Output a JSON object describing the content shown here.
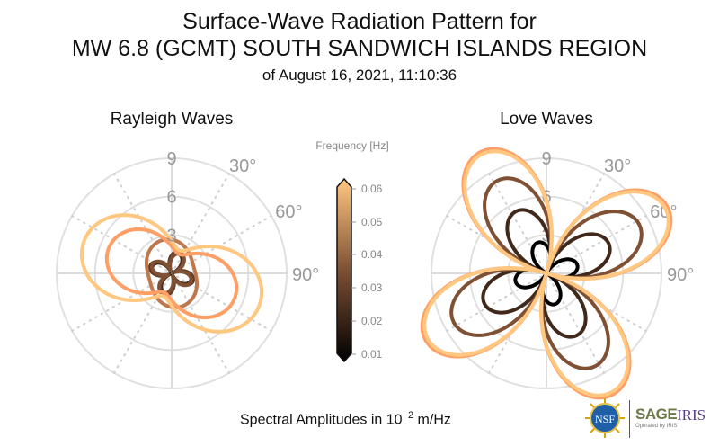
{
  "header": {
    "title_line1": "Surface-Wave Radiation Pattern for",
    "title_line2": "MW 6.8 (GCMT) SOUTH SANDWICH ISLANDS REGION",
    "title_line3": "of August 16, 2021, 11:10:36"
  },
  "footer": {
    "units_prefix": "Spectral Amplitudes in 10",
    "units_exponent": "−2",
    "units_suffix": " m/Hz"
  },
  "logos": {
    "nsf": "NSF",
    "sage": "SAGE",
    "iris": "IRIS",
    "operated_by": "Operated by IRIS"
  },
  "colors": {
    "cmap_low": "#000000",
    "cmap_mid": "#9c6340",
    "cmap_high": "#ffc77f",
    "grid": "#e0e0e0",
    "tick_text": "#999999"
  },
  "chart_data": [
    {
      "type": "polar-line",
      "title": "Rayleigh Waves",
      "radial_ticks": [
        "3",
        "6",
        "9"
      ],
      "radial_tick_values": [
        3,
        6,
        9
      ],
      "rmax": 9,
      "angular_ticks": [
        "30°",
        "60°",
        "90°"
      ],
      "angular_tick_values": [
        30,
        60,
        90
      ],
      "angle_zero": "north",
      "angle_direction": "clockwise",
      "grid": true,
      "series": [
        {
          "name": "0.02 Hz",
          "frequency": 0.02,
          "pattern": "four-lobe",
          "max_amplitude": 1.6,
          "lobe_azimuth": 20,
          "isotropic": 0.6,
          "mix": 0.0
        },
        {
          "name": "0.025 Hz",
          "frequency": 0.025,
          "pattern": "four-lobe",
          "max_amplitude": 1.8,
          "lobe_azimuth": 20,
          "isotropic": 0.7,
          "mix": 0.1
        },
        {
          "name": "0.03 Hz",
          "frequency": 0.03,
          "pattern": "four-lobe",
          "max_amplitude": 1.7,
          "lobe_azimuth": 25,
          "isotropic": 0.8,
          "mix": 0.2
        },
        {
          "name": "0.04 Hz",
          "frequency": 0.04,
          "pattern": "two-lobe",
          "max_amplitude": 2.7,
          "lobe_azimuth": 165,
          "isotropic": 1.8,
          "mix": 1.0
        },
        {
          "name": "0.05 Hz",
          "frequency": 0.05,
          "pattern": "two-lobe",
          "max_amplitude": 5.3,
          "lobe_azimuth": 112,
          "isotropic": 1.6,
          "mix": 1.0
        },
        {
          "name": "0.06 Hz",
          "frequency": 0.06,
          "pattern": "two-lobe",
          "max_amplitude": 7.3,
          "lobe_azimuth": 110,
          "isotropic": 1.9,
          "mix": 1.0
        }
      ]
    },
    {
      "type": "polar-line",
      "title": "Love Waves",
      "radial_ticks": [
        "3",
        "6",
        "9"
      ],
      "radial_tick_values": [
        3,
        6,
        9
      ],
      "rmax": 9,
      "angular_ticks": [
        "30°",
        "60°",
        "90°"
      ],
      "angular_tick_values": [
        30,
        60,
        90
      ],
      "angle_zero": "north",
      "angle_direction": "clockwise",
      "grid": true,
      "series": [
        {
          "name": "0.01 Hz",
          "frequency": 0.01,
          "pattern": "four-lobe",
          "max_amplitude": 2.5,
          "lobe_azimuth": 75
        },
        {
          "name": "0.02 Hz",
          "frequency": 0.02,
          "pattern": "four-lobe",
          "max_amplitude": 5.4,
          "lobe_azimuth": 64
        },
        {
          "name": "0.03 Hz",
          "frequency": 0.03,
          "pattern": "four-lobe",
          "max_amplitude": 8.2,
          "lobe_azimuth": 62
        },
        {
          "name": "0.05 Hz",
          "frequency": 0.05,
          "pattern": "four-lobe",
          "max_amplitude": 10.8,
          "lobe_azimuth": 61
        },
        {
          "name": "0.06 Hz",
          "frequency": 0.06,
          "pattern": "four-lobe",
          "max_amplitude": 10.6,
          "lobe_azimuth": 61
        }
      ]
    }
  ],
  "colorbar": {
    "title": "Frequency [Hz]",
    "ticks": [
      "0.06",
      "0.05",
      "0.04",
      "0.03",
      "0.02",
      "0.01"
    ],
    "tick_values": [
      0.06,
      0.05,
      0.04,
      0.03,
      0.02,
      0.01
    ],
    "range": [
      0.01,
      0.06
    ],
    "extend": "both",
    "colormap": "copper"
  }
}
